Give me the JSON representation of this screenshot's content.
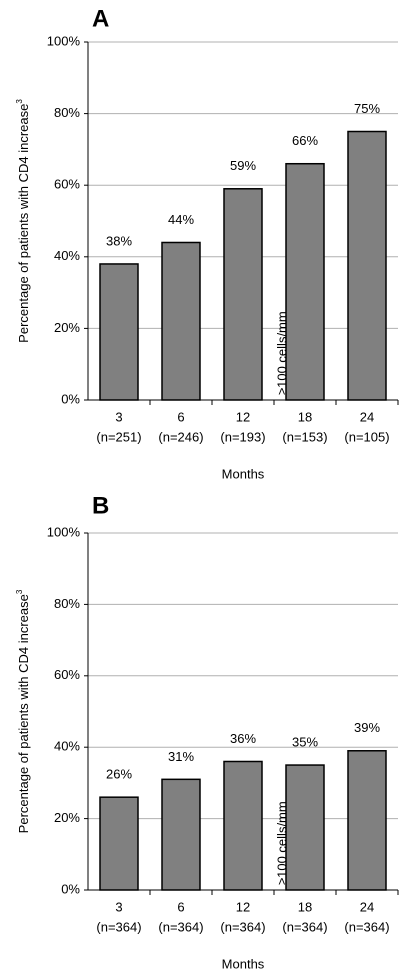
{
  "chart_data": [
    {
      "type": "bar",
      "title": "A",
      "ylabel": "Percentage of patients with CD4 increase",
      "ylabel_sup": "3",
      "ylabel_inner": "≥100 cells/mm",
      "xlabel": "Months",
      "categories": [
        "3",
        "6",
        "12",
        "18",
        "24"
      ],
      "category_counts": [
        "(n=251)",
        "(n=246)",
        "(n=193)",
        "(n=153)",
        "(n=105)"
      ],
      "values": [
        38,
        44,
        59,
        66,
        75
      ],
      "value_labels": [
        "38%",
        "44%",
        "59%",
        "66%",
        "75%"
      ],
      "color": "#808080",
      "ylim": [
        0,
        100
      ],
      "yticks": [
        {
          "value": 0,
          "label": "0%"
        },
        {
          "value": 20,
          "label": "20%"
        },
        {
          "value": 40,
          "label": "40%"
        },
        {
          "value": 60,
          "label": "60%"
        },
        {
          "value": 80,
          "label": "80%"
        },
        {
          "value": 100,
          "label": "100%"
        }
      ],
      "grid": true
    },
    {
      "type": "bar",
      "title": "B",
      "ylabel": "Percentage of patients with CD4 increase",
      "ylabel_sup": "3",
      "ylabel_inner": "≥100 cells/mm",
      "xlabel": "Months",
      "categories": [
        "3",
        "6",
        "12",
        "18",
        "24"
      ],
      "category_counts": [
        "(n=364)",
        "(n=364)",
        "(n=364)",
        "(n=364)",
        "(n=364)"
      ],
      "values": [
        26,
        31,
        36,
        35,
        39
      ],
      "value_labels": [
        "26%",
        "31%",
        "36%",
        "35%",
        "39%"
      ],
      "color": "#808080",
      "ylim": [
        0,
        100
      ],
      "yticks": [
        {
          "value": 0,
          "label": "0%"
        },
        {
          "value": 20,
          "label": "20%"
        },
        {
          "value": 40,
          "label": "40%"
        },
        {
          "value": 60,
          "label": "60%"
        },
        {
          "value": 80,
          "label": "80%"
        },
        {
          "value": 100,
          "label": "100%"
        }
      ],
      "grid": true
    }
  ]
}
